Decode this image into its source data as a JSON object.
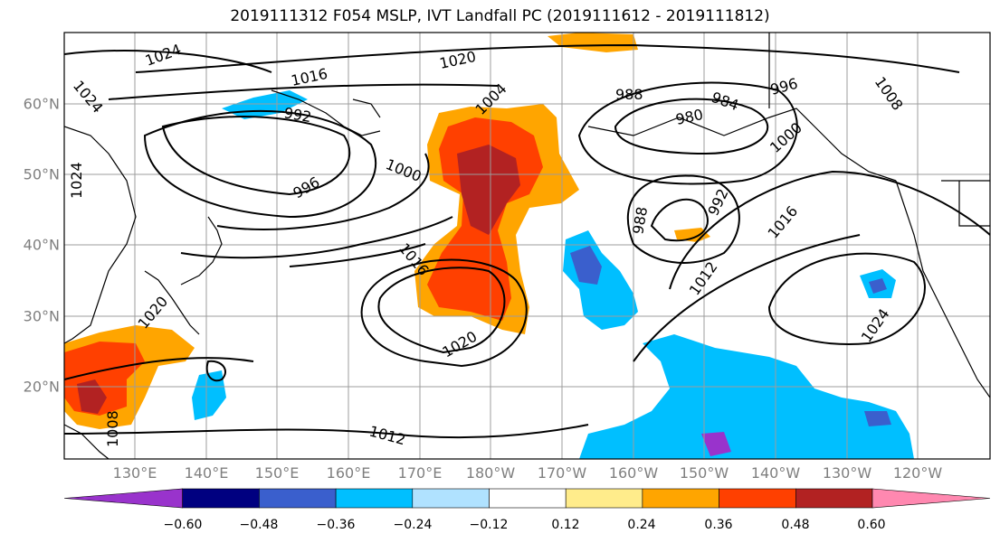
{
  "title": "2019111312 F054 MSLP, IVT Landfall PC (2019111612 - 2019111812)",
  "map": {
    "latitude_labels": [
      "20°N",
      "30°N",
      "40°N",
      "50°N",
      "60°N"
    ],
    "longitude_labels": [
      "130°E",
      "140°E",
      "150°E",
      "160°E",
      "170°E",
      "180°W",
      "170°W",
      "160°W",
      "150°W",
      "140°W",
      "130°W",
      "120°W"
    ],
    "contour_labels": [
      "1024",
      "1024",
      "1024",
      "1016",
      "1020",
      "992",
      "1004",
      "988",
      "984",
      "980",
      "996",
      "1008",
      "1000",
      "996",
      "1000",
      "988",
      "992",
      "1016",
      "1016",
      "1012",
      "1020",
      "1020",
      "1024",
      "1008",
      "1012"
    ],
    "colors": {
      "land_outline": "#000000",
      "grid": "#999999",
      "fill_neg_060": "#9933cc",
      "fill_neg_048": "#000080",
      "fill_neg_036": "#3a5fcd",
      "fill_neg_024": "#00bfff",
      "fill_neg_012": "#b0e2ff",
      "fill_pos_012": "#ffec8b",
      "fill_pos_024": "#ffa500",
      "fill_pos_036": "#ff4000",
      "fill_pos_048": "#b22222",
      "fill_pos_060": "#ff88b0"
    }
  },
  "colorbar": {
    "ticks": [
      "−0.60",
      "−0.48",
      "−0.36",
      "−0.24",
      "−0.12",
      "0.12",
      "0.24",
      "0.36",
      "0.48",
      "0.60"
    ],
    "colors": [
      "#9933cc",
      "#000080",
      "#3a5fcd",
      "#00bfff",
      "#b0e2ff",
      "#ffffff",
      "#ffec8b",
      "#ffa500",
      "#ff4000",
      "#b22222",
      "#ff88b0"
    ]
  }
}
